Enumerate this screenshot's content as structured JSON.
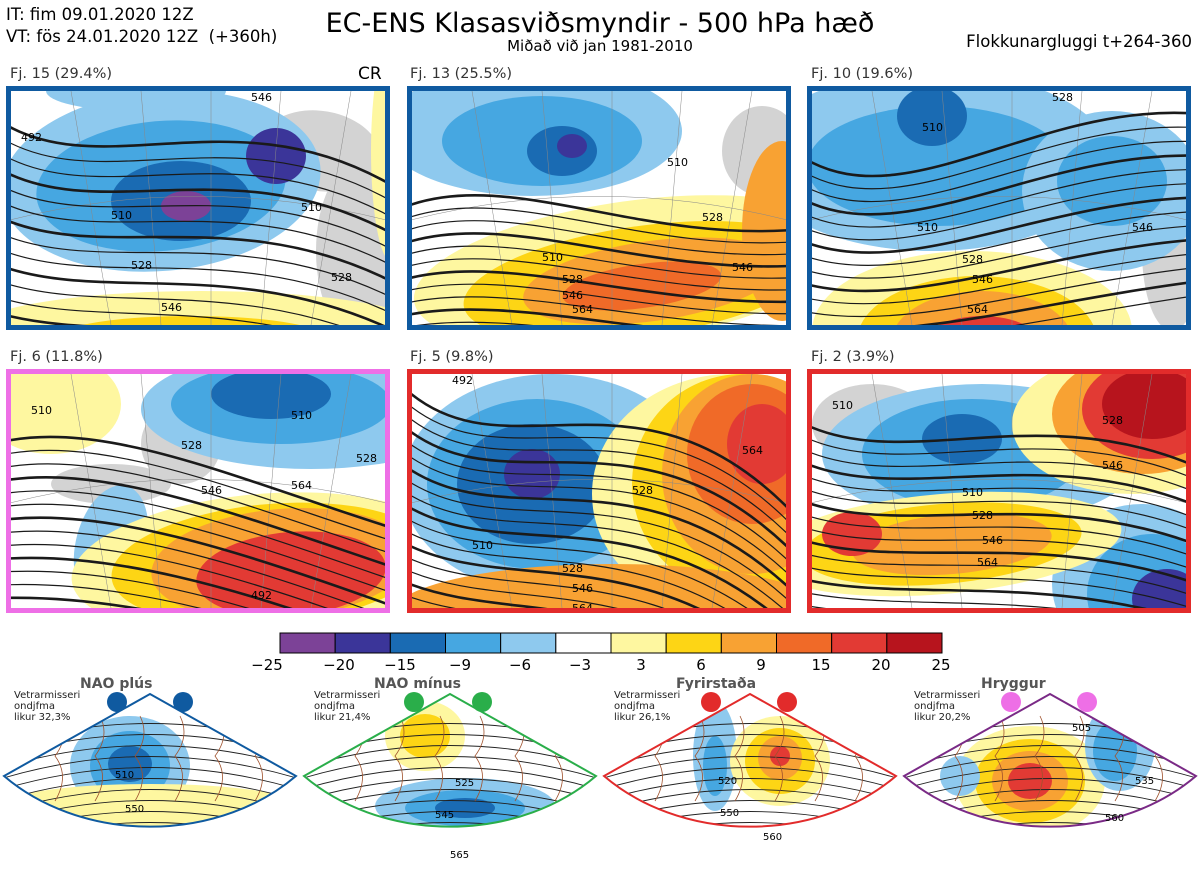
{
  "header": {
    "it_line": "IT: fim 09.01.2020 12Z",
    "vt_line": "VT: fös 24.01.2020 12Z  (+360h)",
    "title": "EC-ENS Klasasviðsmyndir - 500 hPa hæð",
    "subtitle": "Miðað við jan 1981-2010",
    "window": "Flokkunargluggi t+264-360"
  },
  "colors": {
    "pos": [
      "#fef7a0",
      "#fdd515",
      "#f8a233",
      "#f06a28",
      "#e23a34",
      "#b7141d"
    ],
    "neg": [
      "#8ec9ee",
      "#46a7e1",
      "#1a6bb3",
      "#3b3599",
      "#7c4297"
    ],
    "land": "#d3d3d3",
    "line": "#1a1a1a"
  },
  "panels": [
    {
      "label": "Fj. 15 (29.4%)",
      "extra": "CR",
      "border": "#0f5aa0",
      "contour_labels": [
        "510",
        "528",
        "546",
        "510",
        "528",
        "546",
        "492"
      ]
    },
    {
      "label": "Fj. 13 (25.5%)",
      "border": "#0f5aa0",
      "contour_labels": [
        "510",
        "528",
        "546",
        "564",
        "510",
        "528",
        "546"
      ]
    },
    {
      "label": "Fj. 10 (19.6%)",
      "border": "#0f5aa0",
      "contour_labels": [
        "510",
        "528",
        "546",
        "564",
        "510",
        "528",
        "546"
      ]
    },
    {
      "label": "Fj. 6 (11.8%)",
      "border": "#ee6fe6",
      "contour_labels": [
        "510",
        "528",
        "546",
        "564",
        "492",
        "510",
        "528"
      ]
    },
    {
      "label": "Fj. 5 (9.8%)",
      "border": "#e22b2b",
      "contour_labels": [
        "510",
        "528",
        "546",
        "564",
        "492",
        "528",
        "564"
      ]
    },
    {
      "label": "Fj. 2 (3.9%)",
      "border": "#e22b2b",
      "contour_labels": [
        "510",
        "528",
        "546",
        "564",
        "510",
        "528",
        "546"
      ]
    }
  ],
  "colorbar": {
    "colors": [
      "#7c4297",
      "#3b3599",
      "#1a6bb3",
      "#46a7e1",
      "#8ec9ee",
      "#ffffff",
      "#fef7a0",
      "#fdd515",
      "#f8a233",
      "#f06a28",
      "#e23a34",
      "#b7141d"
    ],
    "ticks": [
      "−25",
      "−20",
      "−15",
      "−9",
      "−6",
      "−3",
      "3",
      "6",
      "9",
      "15",
      "20",
      "25"
    ]
  },
  "regimes": [
    {
      "title": "NAO plús",
      "note": [
        "Vetrarmisseri",
        "ondjfma",
        "likur 32,3%"
      ],
      "dot_color": "#0f5aa0",
      "border": "#0f5aa0",
      "labels": [
        "510",
        "550"
      ]
    },
    {
      "title": "NAO mínus",
      "note": [
        "Vetrarmisseri",
        "ondjfma",
        "likur 21,4%"
      ],
      "dot_color": "#2aae4a",
      "border": "#2aae4a",
      "labels": [
        "525",
        "545",
        "565"
      ]
    },
    {
      "title": "Fyrirstaða",
      "note": [
        "Vetrarmisseri",
        "ondjfma",
        "likur 26,1%"
      ],
      "dot_color": "#e22b2b",
      "border": "#e22b2b",
      "labels": [
        "520",
        "550",
        "560"
      ]
    },
    {
      "title": "Hryggur",
      "note": [
        "Vetrarmisseri",
        "ondjfma",
        "likur 20,2%"
      ],
      "dot_color": "#ee6fe6",
      "border": "#7a2a86",
      "labels": [
        "505",
        "535",
        "560"
      ]
    }
  ]
}
